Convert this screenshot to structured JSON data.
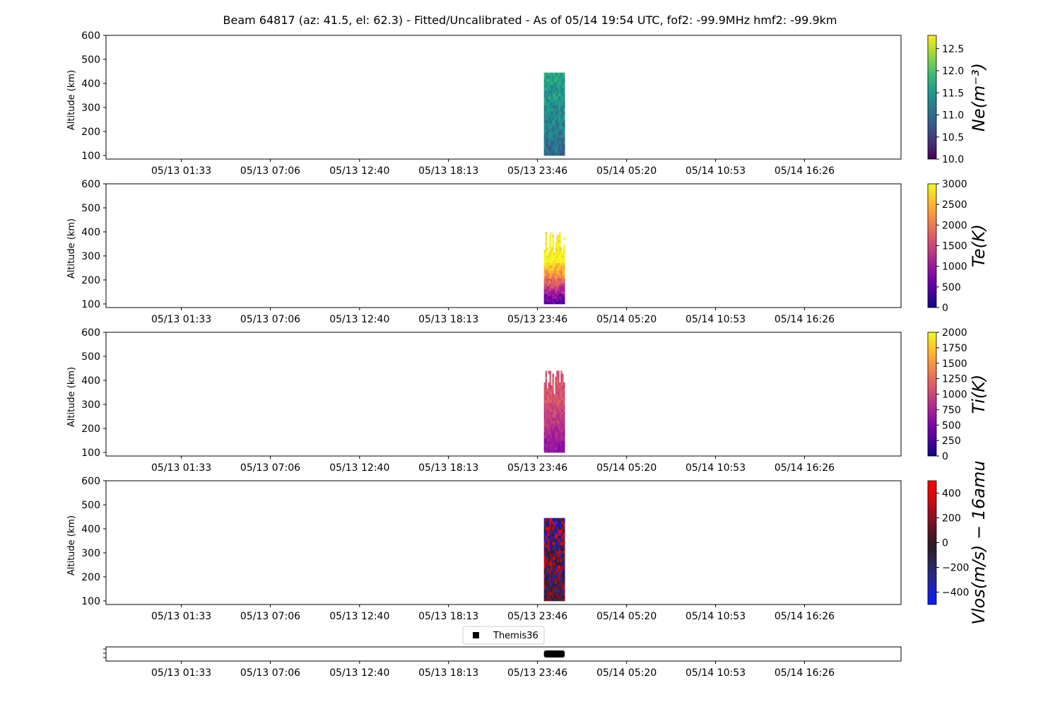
{
  "title": "Beam 64817 (az: 41.5, el: 62.3) - Fitted/Uncalibrated - As of 05/14 19:54 UTC, fof2: -99.9MHz  hmf2: -99.9km",
  "chart_data": {
    "type": "heatmap",
    "x_ticks": [
      "05/13 01:33",
      "05/13 07:06",
      "05/13 12:40",
      "05/13 18:13",
      "05/13 23:46",
      "05/14 05:20",
      "05/14 10:53",
      "05/14 16:26"
    ],
    "x_range_hours": [
      -4.7,
      44.9
    ],
    "x_tick_hours": [
      0,
      5.55,
      11.12,
      16.67,
      22.22,
      27.78,
      33.33,
      38.88
    ],
    "data_span_hours": [
      22.62,
      23.92
    ],
    "ylim": [
      85,
      600
    ],
    "y_ticks": [
      100,
      200,
      300,
      400,
      500,
      600
    ],
    "panels": [
      {
        "id": "ne",
        "ylabel": "Altitude (km)",
        "colorbar_label": "Ne(m⁻³)",
        "cmap": "viridis",
        "clim": [
          10.0,
          12.8
        ],
        "cb_ticks": [
          10.0,
          10.5,
          11.0,
          11.5,
          12.0,
          12.5
        ],
        "cb_tick_labels": [
          "10.0",
          "10.5",
          "11.0",
          "11.5",
          "12.0",
          "12.5"
        ],
        "altitude_range": [
          100,
          445
        ],
        "typical_value": 11.3
      },
      {
        "id": "te",
        "ylabel": "Altitude (km)",
        "colorbar_label": "Te(K)",
        "cmap": "plasma",
        "clim": [
          0,
          3000
        ],
        "cb_ticks": [
          0,
          500,
          1000,
          1500,
          2000,
          2500,
          3000
        ],
        "cb_tick_labels": [
          "0",
          "500",
          "1000",
          "1500",
          "2000",
          "2500",
          "3000"
        ],
        "altitude_range": [
          100,
          400
        ],
        "typical_value": 2300
      },
      {
        "id": "ti",
        "ylabel": "Altitude (km)",
        "colorbar_label": "Ti(K)",
        "cmap": "plasma",
        "clim": [
          0,
          2000
        ],
        "cb_ticks": [
          0,
          250,
          500,
          750,
          1000,
          1250,
          1500,
          1750,
          2000
        ],
        "cb_tick_labels": [
          "0",
          "250",
          "500",
          "750",
          "1000",
          "1250",
          "1500",
          "1750",
          "2000"
        ],
        "altitude_range": [
          100,
          440
        ],
        "typical_value": 1050
      },
      {
        "id": "vlos",
        "ylabel": "Altitude (km)",
        "colorbar_label": "Vlos(m/s) − 16amu",
        "cmap": "bwr-dark",
        "clim": [
          -500,
          500
        ],
        "cb_ticks": [
          -400,
          -200,
          0,
          200,
          400
        ],
        "cb_tick_labels": [
          "−400",
          "−200",
          "0",
          "200",
          "400"
        ],
        "altitude_range": [
          100,
          445
        ],
        "typical_value": 0
      }
    ],
    "legend": {
      "label": "Themis36",
      "location": "top-center"
    },
    "mode_bar_span_hours": [
      22.62,
      23.92
    ]
  }
}
